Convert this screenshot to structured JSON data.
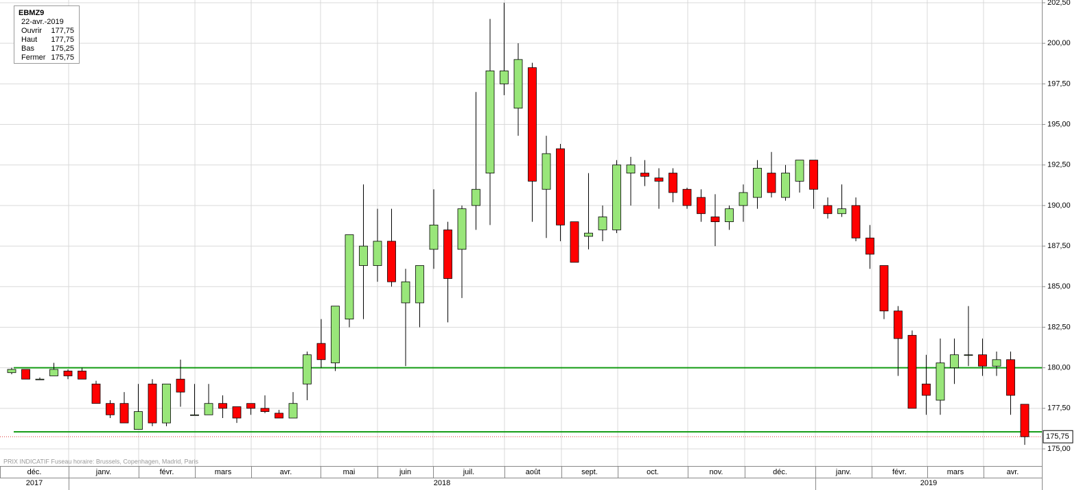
{
  "chart_data": {
    "type": "candlestick",
    "series": [
      {
        "name": "EBMZ9",
        "up_color": "#99e67a",
        "down_color": "#ff0000",
        "open": [
          179.7,
          179.9,
          179.3,
          179.5,
          179.8,
          179.8,
          179.0,
          177.8,
          177.8,
          176.2,
          179.0,
          176.6,
          179.3,
          177.1,
          177.1,
          177.8,
          177.6,
          177.8,
          177.5,
          177.2,
          176.9,
          179.0,
          181.5,
          180.3,
          183.0,
          186.3,
          186.3,
          187.8,
          184.0,
          184.0,
          187.3,
          188.5,
          187.3,
          190.0,
          192.0,
          197.5,
          196.0,
          198.5,
          191.0,
          193.5,
          189.0,
          188.1,
          188.5,
          188.5,
          192.0,
          192.0,
          191.7,
          192.0,
          191.0,
          190.5,
          189.3,
          189.0,
          190.0,
          190.5,
          192.0,
          190.5,
          191.5,
          192.8,
          190.0,
          189.5,
          190.0,
          188.0,
          186.3,
          183.5,
          182.0,
          179.0,
          178.0,
          180.0,
          180.8,
          180.8,
          180.1,
          180.5,
          177.75
        ],
        "high": [
          180.0,
          179.9,
          179.4,
          180.3,
          179.9,
          180.0,
          179.2,
          178.0,
          178.5,
          179.0,
          179.3,
          179.0,
          180.5,
          179.0,
          179.0,
          178.3,
          177.6,
          177.8,
          178.3,
          177.4,
          178.5,
          181.0,
          183.0,
          183.8,
          188.2,
          191.3,
          189.8,
          189.8,
          186.1,
          186.3,
          191.0,
          189.0,
          190.0,
          197.0,
          201.5,
          202.5,
          200.0,
          198.8,
          194.3,
          193.8,
          189.0,
          192.0,
          190.0,
          192.8,
          193.0,
          192.8,
          192.3,
          192.3,
          191.1,
          191.0,
          190.7,
          190.0,
          191.3,
          192.8,
          193.3,
          192.5,
          192.8,
          192.8,
          190.5,
          191.3,
          190.5,
          188.8,
          186.3,
          183.8,
          182.3,
          180.8,
          181.8,
          181.8,
          183.8,
          181.8,
          181.0,
          181.0,
          177.75
        ],
        "low": [
          179.6,
          179.3,
          179.3,
          179.5,
          179.3,
          179.3,
          177.8,
          176.9,
          176.6,
          176.2,
          176.4,
          176.4,
          177.6,
          177.1,
          177.1,
          176.9,
          176.6,
          177.1,
          177.2,
          176.9,
          176.9,
          178.0,
          180.0,
          179.8,
          182.5,
          183.0,
          185.3,
          185.0,
          180.1,
          182.5,
          186.1,
          182.8,
          184.3,
          188.5,
          188.8,
          196.8,
          194.3,
          189.0,
          188.0,
          187.8,
          186.5,
          187.3,
          187.8,
          188.3,
          190.0,
          191.2,
          189.8,
          190.2,
          189.8,
          189.0,
          187.5,
          188.5,
          189.0,
          189.8,
          190.5,
          190.3,
          190.8,
          189.8,
          189.2,
          189.3,
          187.8,
          186.1,
          183.0,
          179.5,
          177.5,
          177.1,
          177.1,
          179.0,
          180.1,
          179.5,
          179.5,
          177.1,
          175.25
        ],
        "close": [
          179.9,
          179.3,
          179.3,
          179.9,
          179.5,
          179.3,
          177.8,
          177.1,
          176.6,
          177.3,
          176.6,
          179.0,
          178.5,
          177.1,
          177.8,
          177.5,
          176.9,
          177.5,
          177.3,
          176.9,
          177.8,
          180.8,
          180.5,
          183.8,
          188.2,
          187.5,
          187.8,
          185.3,
          185.3,
          186.3,
          188.8,
          185.5,
          189.8,
          191.0,
          198.3,
          198.3,
          199.0,
          191.5,
          193.2,
          188.8,
          186.5,
          188.3,
          189.3,
          192.5,
          192.5,
          191.8,
          191.5,
          190.8,
          190.0,
          189.5,
          189.0,
          189.8,
          190.8,
          192.3,
          190.8,
          192.0,
          192.8,
          191.0,
          189.5,
          189.8,
          188.0,
          187.0,
          183.5,
          181.8,
          177.5,
          178.3,
          180.3,
          180.8,
          180.8,
          180.1,
          180.5,
          178.3,
          175.75
        ]
      }
    ],
    "levels": [
      {
        "value": 180.0,
        "color": "#109a10"
      },
      {
        "value": 176.05,
        "color": "#109a10"
      }
    ],
    "last_price": {
      "value": 175.75,
      "label": "175,75",
      "color": "#e03030"
    },
    "ylim": [
      175,
      202.5
    ],
    "yticks": [
      {
        "value": 175,
        "label": "175,00"
      },
      {
        "value": 177.5,
        "label": "177,50"
      },
      {
        "value": 180,
        "label": "180,00"
      },
      {
        "value": 182.5,
        "label": "182,50"
      },
      {
        "value": 185,
        "label": "185,00"
      },
      {
        "value": 187.5,
        "label": "187,50"
      },
      {
        "value": 190,
        "label": "190,00"
      },
      {
        "value": 192.5,
        "label": "192,50"
      },
      {
        "value": 195,
        "label": "195,00"
      },
      {
        "value": 197.5,
        "label": "197,50"
      },
      {
        "value": 200,
        "label": "200,00"
      },
      {
        "value": 202.5,
        "label": "202,50"
      }
    ],
    "months": [
      "déc.",
      "janv.",
      "févr.",
      "mars",
      "avr.",
      "mai",
      "juin",
      "juil.",
      "août",
      "sept.",
      "oct.",
      "nov.",
      "déc.",
      "janv.",
      "févr.",
      "mars",
      "avr."
    ],
    "years": [
      "2017",
      "2018",
      "2019"
    ],
    "grid": true,
    "footer": "PRIX INDICATIF   Fuseau horaire: Brussels, Copenhagen, Madrid, Paris",
    "info_box": {
      "date": "22-avr.-2019",
      "rows": [
        {
          "label": "Ouvrir",
          "value": "177,75"
        },
        {
          "label": "Haut",
          "value": "177,75"
        },
        {
          "label": "Bas",
          "value": "175,25"
        },
        {
          "label": "Fermer",
          "value": "175,75"
        }
      ]
    }
  }
}
